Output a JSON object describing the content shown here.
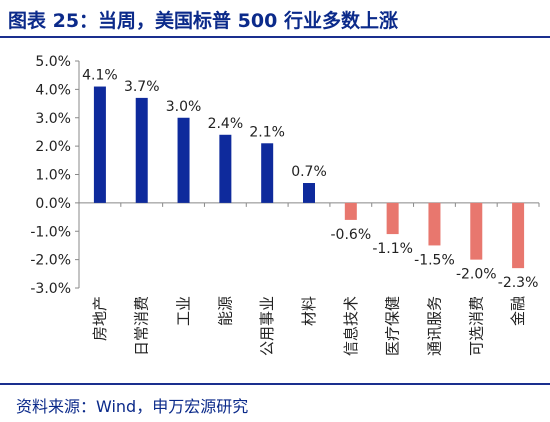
{
  "figure": {
    "title": "图表 25：当周，美国标普 500 行业多数上涨",
    "source": "资料来源：Wind，申万宏源研究"
  },
  "colors": {
    "positive": "#0e2a9c",
    "negative": "#e8776e",
    "title": "#0b2a8a",
    "axis": "#888888"
  },
  "chart_data": {
    "type": "bar",
    "title": "",
    "xlabel": "",
    "ylabel": "",
    "categories": [
      "房地产",
      "日常消费",
      "工业",
      "能源",
      "公用事业",
      "材料",
      "信息技术",
      "医疗保健",
      "通讯服务",
      "可选消费",
      "金融"
    ],
    "values": [
      4.1,
      3.7,
      3.0,
      2.4,
      2.1,
      0.7,
      -0.6,
      -1.1,
      -1.5,
      -2.0,
      -2.3
    ],
    "value_labels": [
      "4.1%",
      "3.7%",
      "3.0%",
      "2.4%",
      "2.1%",
      "0.7%",
      "-0.6%",
      "-1.1%",
      "-1.5%",
      "-2.0%",
      "-2.3%"
    ],
    "yticks": [
      "5.0%",
      "4.0%",
      "3.0%",
      "2.0%",
      "1.0%",
      "0.0%",
      "-1.0%",
      "-2.0%",
      "-3.0%"
    ],
    "ylim": [
      -3.0,
      5.0
    ],
    "grid": false,
    "legend": "none"
  }
}
